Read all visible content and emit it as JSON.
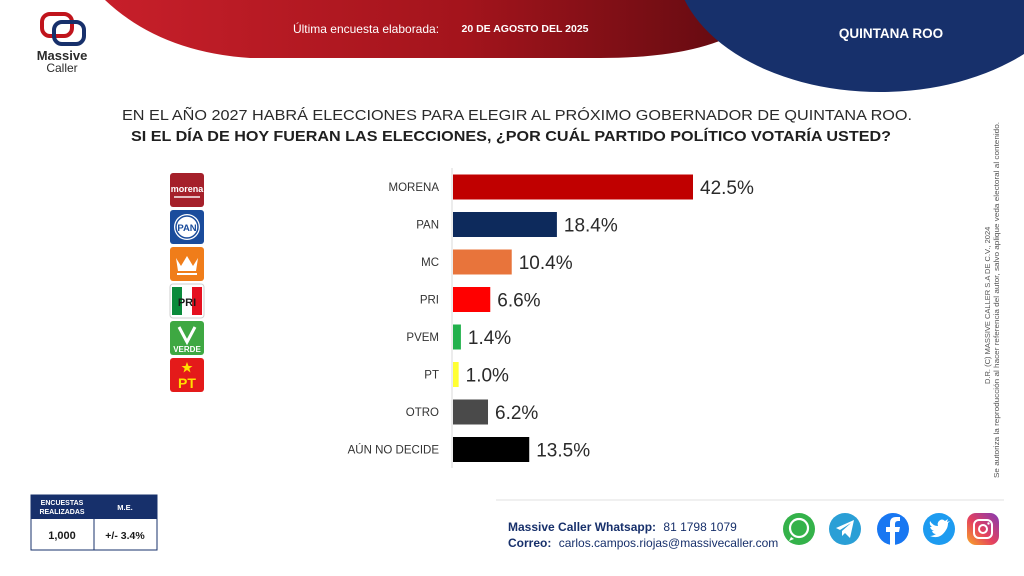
{
  "brand": {
    "name_line1": "Massive",
    "name_line2": "Caller"
  },
  "header": {
    "survey_label": "Última encuesta elaborada:",
    "survey_date": "20 DE AGOSTO DEL 2025",
    "region": "QUINTANA ROO"
  },
  "question": {
    "line1": "EN EL AÑO 2027 HABRÁ ELECCIONES PARA ELEGIR AL PRÓXIMO GOBERNADOR DE QUINTANA ROO.",
    "line2": "SI EL DÍA DE HOY FUERAN LAS ELECCIONES, ¿POR CUÁL PARTIDO POLÍTICO VOTARÍA USTED?"
  },
  "logos": [
    {
      "icon": "morena-logo",
      "text": "morena",
      "color": "#a5202a"
    },
    {
      "icon": "pan-logo",
      "text": "PAN",
      "color": "#1a4c9c"
    },
    {
      "icon": "mc-logo",
      "text": "",
      "color": "#f07d1a"
    },
    {
      "icon": "pri-logo",
      "text": "PRI",
      "color": "#e5101f"
    },
    {
      "icon": "verde-logo",
      "text": "VERDE",
      "color": "#3ea842"
    },
    {
      "icon": "pt-logo",
      "text": "PT",
      "color": "#e41a1a"
    }
  ],
  "chart_data": {
    "type": "bar",
    "orientation": "horizontal",
    "categories": [
      "MORENA",
      "PAN",
      "MC",
      "PRI",
      "PVEM",
      "PT",
      "OTRO",
      "AÚN NO DECIDE"
    ],
    "values": [
      42.5,
      18.4,
      10.4,
      6.6,
      1.4,
      1.0,
      6.2,
      13.5
    ],
    "value_labels": [
      "42.5%",
      "18.4%",
      "10.4%",
      "6.6%",
      "1.4%",
      "1.0%",
      "6.2%",
      "13.5%"
    ],
    "colors": [
      "#c00000",
      "#0d2a5c",
      "#e8743b",
      "#ff0000",
      "#22b14c",
      "#ffff33",
      "#4a4a4a",
      "#000000"
    ],
    "unit": "%",
    "xlim": [
      0,
      42.5
    ],
    "grid": false,
    "title": "",
    "xlabel": "",
    "ylabel": ""
  },
  "stats": {
    "col1_header_line1": "ENCUESTAS",
    "col1_header_line2": "REALIZADAS",
    "col2_header": "M.E.",
    "surveys": "1,000",
    "margin": "+/- 3.4%"
  },
  "contact": {
    "whatsapp_label": "Massive Caller Whatsapp:",
    "whatsapp_number": "81 1798 1079",
    "email_label": "Correo:",
    "email": "carlos.campos.riojas@massivecaller.com"
  },
  "social": [
    "whatsapp-icon",
    "telegram-icon",
    "facebook-icon",
    "twitter-icon",
    "instagram-icon"
  ],
  "copyright": {
    "line1": "D.R. (C) MASSIVE CALLER S.A DE C.V., 2024",
    "line2": "Se autoriza la reproducción al hacer referencia del autor, salvo aplique veda electoral al contenido."
  }
}
